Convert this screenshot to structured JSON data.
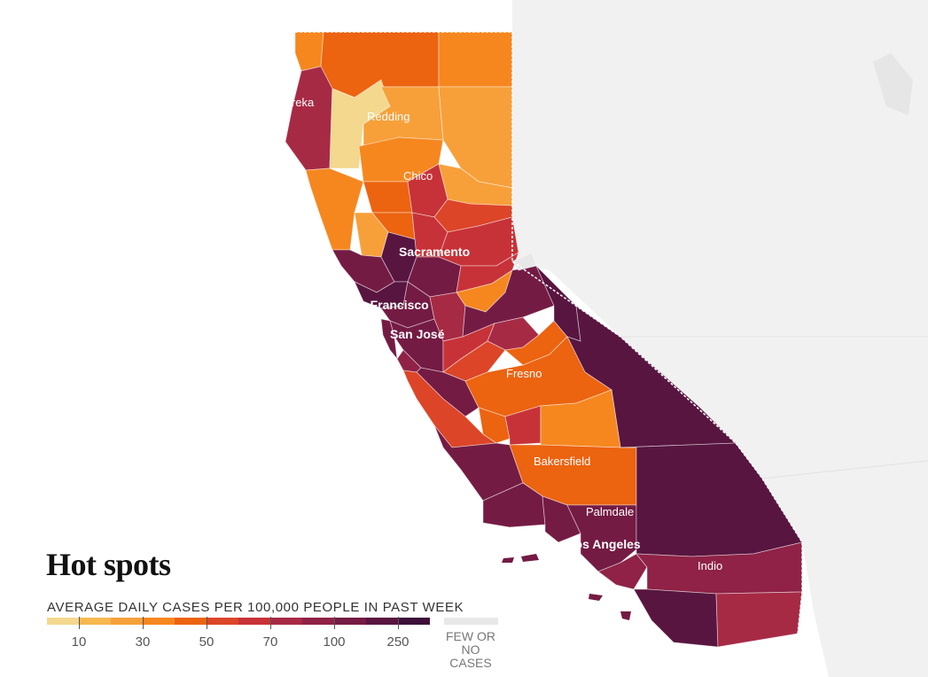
{
  "title": "Hot spots",
  "legend": {
    "title": "AVERAGE DAILY CASES PER 100,000 PEOPLE IN PAST WEEK",
    "colors": [
      "#f3d88e",
      "#f7b850",
      "#f7a03a",
      "#f6871f",
      "#ec6310",
      "#dc4528",
      "#c73238",
      "#a72a45",
      "#8f2246",
      "#741b44",
      "#581540",
      "#3d0f39"
    ],
    "ticks": [
      "10",
      "30",
      "50",
      "70",
      "100",
      "250"
    ],
    "few_cases_label": "FEW OR NO CASES",
    "few_cases_color": "#e8e8e8"
  },
  "cities": [
    {
      "name": "Eureka",
      "major": false
    },
    {
      "name": "Redding",
      "major": false
    },
    {
      "name": "Chico",
      "major": false
    },
    {
      "name": "Sacramento",
      "major": true
    },
    {
      "name": "San Francisco",
      "major": true
    },
    {
      "name": "San José",
      "major": true
    },
    {
      "name": "Fresno",
      "major": false
    },
    {
      "name": "Bakersfield",
      "major": false
    },
    {
      "name": "Palmdale",
      "major": false
    },
    {
      "name": "Los Angeles",
      "major": true
    },
    {
      "name": "Indio",
      "major": false
    }
  ],
  "colors": {
    "background_land": "#f3f3f3",
    "ocean": "#ffffff"
  }
}
